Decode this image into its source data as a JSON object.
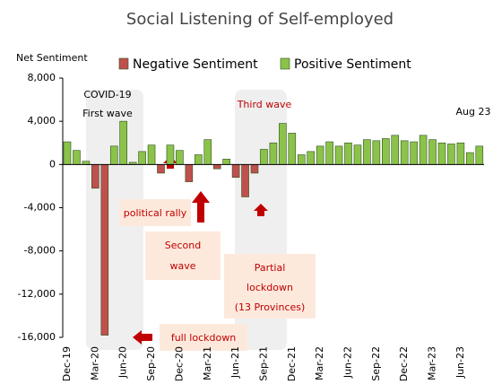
{
  "chart_data": {
    "type": "bar",
    "title": "Social Listening of Self-employed",
    "y_axis_label": "Net Sentiment",
    "categories": [
      "Dec-19",
      null,
      null,
      "Mar-20",
      null,
      null,
      "Jun-20",
      null,
      null,
      "Sep-20",
      null,
      null,
      "Dec-20",
      null,
      null,
      "Mar-21",
      null,
      null,
      "Jun-21",
      null,
      null,
      "Sep-21",
      null,
      null,
      "Dec-21",
      null,
      null,
      "Mar-22",
      null,
      null,
      "Jun-22",
      null,
      null,
      "Sep-22",
      null,
      null,
      "Dec-22",
      null,
      null,
      "Mar-23",
      null,
      null,
      "Jun-23",
      null,
      null
    ],
    "series": [
      {
        "name": "Negative Sentiment",
        "color": "#c0504d",
        "values": [
          null,
          null,
          null,
          -2200,
          -15800,
          null,
          null,
          null,
          null,
          null,
          -800,
          null,
          null,
          -1600,
          null,
          null,
          -400,
          null,
          -1200,
          -3000,
          -800,
          null,
          null,
          null,
          null,
          null,
          null,
          null,
          null,
          null,
          null,
          null,
          null,
          null,
          null,
          null,
          null,
          null,
          null,
          null,
          null,
          null,
          null,
          null,
          null
        ]
      },
      {
        "name": "Positive Sentiment",
        "color": "#8bc34a",
        "values": [
          2100,
          1300,
          300,
          null,
          null,
          1700,
          4000,
          200,
          1200,
          1800,
          null,
          1800,
          1300,
          null,
          900,
          2300,
          null,
          500,
          null,
          null,
          null,
          1400,
          2000,
          3800,
          2900,
          900,
          1200,
          1700,
          2100,
          1700,
          2000,
          1800,
          2300,
          2200,
          2400,
          2700,
          2200,
          2100,
          2700,
          2300,
          2000,
          1900,
          2000,
          1100,
          1700
        ]
      }
    ],
    "ylim": [
      -16000,
      8000
    ],
    "yticks": [
      {
        "value": -16000,
        "label": "-16,000"
      },
      {
        "value": -12000,
        "label": "-12,000"
      },
      {
        "value": -8000,
        "label": "-8,000"
      },
      {
        "value": -4000,
        "label": "-4,000"
      },
      0,
      {
        "value": 4000,
        "label": "4,000"
      },
      {
        "value": 8000,
        "label": "8,000"
      }
    ],
    "annotations": [
      {
        "lines": [
          "COVID-19",
          "First wave"
        ]
      },
      {
        "lines": [
          "Third wave"
        ]
      },
      {
        "lines": [
          "Aug 23"
        ]
      },
      {
        "lines": [
          "political rally"
        ]
      },
      {
        "lines": [
          "Second",
          "wave"
        ]
      },
      {
        "lines": [
          "Partial",
          "lockdown",
          "(13 Provinces)"
        ]
      },
      {
        "lines": [
          "full lockdown"
        ]
      }
    ]
  }
}
